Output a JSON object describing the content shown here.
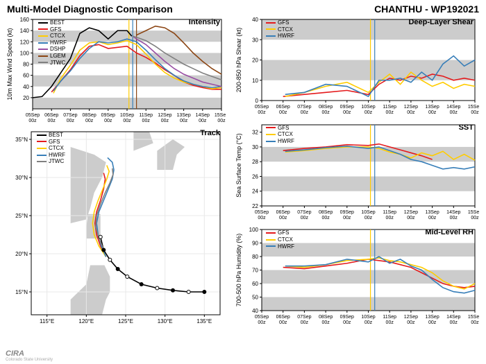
{
  "header": {
    "title": "Multi-Model Diagnostic Comparison",
    "storm": "CHANTHU - WP192021"
  },
  "colors": {
    "BEST": "#000000",
    "GFS": "#e41a1c",
    "CTCX": "#ffcc00",
    "HWRF": "#377eb8",
    "DSHP": "#984ea3",
    "LGEM": "#8b4513",
    "JTWC": "#808080",
    "grid_band": "#cccccc",
    "axis": "#000000",
    "vline1": "#ffcc00",
    "vline2": "#377eb8",
    "vline3": "#8b4513",
    "track_marker_fill": "#ffffff",
    "land": "#cccccc",
    "sea": "#ffffff"
  },
  "common": {
    "xticks": [
      "05Sep 00z",
      "06Sep 00z",
      "07Sep 00z",
      "08Sep 00z",
      "09Sep 00z",
      "10Sep 00z",
      "11Sep 00z",
      "12Sep 00z",
      "13Sep 00z",
      "14Sep 00z",
      "15Sep 00z"
    ],
    "xindex": [
      0,
      1,
      2,
      3,
      4,
      5,
      6,
      7,
      8,
      9,
      10
    ],
    "tick_fontsize": 8,
    "label_fontsize": 9
  },
  "intensity": {
    "title": "Intensity",
    "ylabel": "10m Max Wind Speed (kt)",
    "ylim": [
      0,
      160
    ],
    "yticks": [
      20,
      40,
      60,
      80,
      100,
      120,
      140,
      160
    ],
    "bands": [
      [
        0,
        20
      ],
      [
        40,
        60
      ],
      [
        80,
        100
      ],
      [
        120,
        140
      ]
    ],
    "vlines": [
      5.1,
      5.3,
      5.5
    ],
    "vline_colors": [
      "#ffcc00",
      "#377eb8",
      "#8b4513"
    ],
    "legend": [
      "BEST",
      "GFS",
      "CTCX",
      "HWRF",
      "DSHP",
      "LGEM",
      "JTWC"
    ],
    "series": {
      "BEST": {
        "x": [
          0,
          0.5,
          1,
          1.5,
          2,
          2.5,
          3,
          3.5,
          4,
          4.5,
          5,
          5.25
        ],
        "y": [
          20,
          22,
          40,
          65,
          90,
          135,
          145,
          140,
          125,
          140,
          140,
          130
        ]
      },
      "GFS": {
        "x": [
          1,
          1.5,
          2,
          2.5,
          3,
          3.5,
          4,
          4.5,
          5,
          5.5,
          6,
          6.5,
          7,
          7.5,
          8,
          8.5,
          9,
          9.5,
          10
        ],
        "y": [
          30,
          50,
          70,
          95,
          112,
          115,
          108,
          110,
          112,
          100,
          92,
          82,
          70,
          60,
          48,
          42,
          38,
          35,
          35
        ]
      },
      "CTCX": {
        "x": [
          1.1,
          1.5,
          2,
          2.5,
          3,
          3.5,
          4,
          4.5,
          5,
          5.5,
          6,
          6.5,
          7,
          7.5,
          8,
          8.5,
          9,
          9.5,
          10
        ],
        "y": [
          28,
          55,
          78,
          105,
          118,
          120,
          115,
          118,
          122,
          115,
          98,
          80,
          65,
          55,
          48,
          44,
          40,
          36,
          38
        ]
      },
      "HWRF": {
        "x": [
          1.1,
          1.5,
          2,
          2.5,
          3,
          3.5,
          4,
          4.5,
          5,
          5.5,
          6,
          6.5,
          7,
          7.5,
          8,
          8.5,
          9,
          9.5,
          10
        ],
        "y": [
          32,
          50,
          68,
          90,
          108,
          120,
          118,
          120,
          125,
          120,
          105,
          88,
          72,
          60,
          50,
          44,
          40,
          38,
          40
        ]
      },
      "DSHP": {
        "x": [
          5.3,
          5.5,
          6,
          6.5,
          7,
          7.5,
          8,
          8.5,
          9,
          9.5,
          10
        ],
        "y": [
          130,
          125,
          115,
          100,
          85,
          72,
          62,
          55,
          48,
          44,
          40
        ]
      },
      "LGEM": {
        "x": [
          5.5,
          6,
          6.5,
          7,
          7.5,
          8,
          8.5,
          9,
          9.5,
          10
        ],
        "y": [
          132,
          140,
          148,
          145,
          135,
          118,
          100,
          85,
          72,
          62
        ]
      },
      "JTWC": {
        "x": [
          5.3,
          5.5,
          6,
          6.5,
          7,
          7.5,
          8,
          8.5,
          9,
          9.5,
          10
        ],
        "y": [
          130,
          128,
          122,
          112,
          100,
          90,
          80,
          72,
          64,
          58,
          52
        ]
      }
    }
  },
  "track": {
    "title": "Track",
    "xlabel": "",
    "xlim": [
      113,
      137
    ],
    "ylim": [
      12,
      36
    ],
    "xticks": [
      115,
      120,
      125,
      130,
      135
    ],
    "yticks": [
      15,
      20,
      25,
      30,
      35
    ],
    "xticklabels": [
      "115°E",
      "120°E",
      "125°E",
      "130°E",
      "135°E"
    ],
    "yticklabels": [
      "15°N",
      "20°N",
      "25°N",
      "30°N",
      "35°N"
    ],
    "legend": [
      "BEST",
      "GFS",
      "CTCX",
      "HWRF",
      "JTWC"
    ],
    "land_polys": [
      [
        [
          118,
          12
        ],
        [
          122,
          12
        ],
        [
          122.5,
          14
        ],
        [
          123,
          15
        ],
        [
          123,
          17
        ],
        [
          122.3,
          18.5
        ],
        [
          120.5,
          18.5
        ],
        [
          120,
          16
        ],
        [
          118,
          14
        ]
      ],
      [
        [
          120,
          22
        ],
        [
          121.8,
          22
        ],
        [
          121.8,
          25.2
        ],
        [
          120.2,
          25.2
        ],
        [
          120,
          23.5
        ]
      ],
      [
        [
          118,
          24
        ],
        [
          120,
          24.5
        ],
        [
          120.5,
          26
        ],
        [
          121,
          28
        ],
        [
          122,
          30
        ],
        [
          122.5,
          32
        ],
        [
          121,
          33
        ],
        [
          118,
          34
        ],
        [
          118,
          24
        ]
      ],
      [
        [
          129,
          31
        ],
        [
          131,
          31
        ],
        [
          131.5,
          33
        ],
        [
          132.5,
          34
        ],
        [
          131,
          35
        ],
        [
          129,
          33.5
        ]
      ],
      [
        [
          126,
          33.5
        ],
        [
          128.5,
          34.5
        ],
        [
          128,
          36
        ],
        [
          126,
          36
        ]
      ]
    ],
    "series": {
      "BEST": [
        [
          135,
          15
        ],
        [
          133,
          15
        ],
        [
          131,
          15.2
        ],
        [
          129,
          15.5
        ],
        [
          127,
          16
        ],
        [
          125.2,
          17
        ],
        [
          124,
          18
        ],
        [
          123,
          19.2
        ],
        [
          122.2,
          20.5
        ],
        [
          121.8,
          22.2
        ]
      ],
      "GFS": [
        [
          122.5,
          19.6
        ],
        [
          121.8,
          21
        ],
        [
          121.3,
          22.5
        ],
        [
          121.1,
          24
        ],
        [
          121.3,
          25.5
        ],
        [
          121.8,
          27
        ],
        [
          122.2,
          28.5
        ],
        [
          122.4,
          29.8
        ],
        [
          122.2,
          30.6
        ]
      ],
      "CTCX": [
        [
          122.5,
          19.6
        ],
        [
          121.6,
          21
        ],
        [
          121.0,
          22.5
        ],
        [
          120.8,
          24
        ],
        [
          121.0,
          25.5
        ],
        [
          121.5,
          27
        ],
        [
          122.1,
          28.5
        ],
        [
          122.6,
          29.8
        ],
        [
          122.9,
          30.8
        ],
        [
          122.6,
          31.6
        ]
      ],
      "HWRF": [
        [
          122.5,
          19.6
        ],
        [
          121.9,
          21
        ],
        [
          121.5,
          22.5
        ],
        [
          121.3,
          24
        ],
        [
          121.6,
          25.5
        ],
        [
          122.2,
          27
        ],
        [
          122.8,
          28.5
        ],
        [
          123.3,
          29.8
        ],
        [
          123.5,
          31
        ],
        [
          123.3,
          32
        ],
        [
          122.7,
          32.6
        ]
      ],
      "JTWC": [
        [
          122.2,
          20.6
        ],
        [
          121.6,
          22
        ],
        [
          121.2,
          23.5
        ],
        [
          121.3,
          25
        ],
        [
          121.8,
          26.5
        ],
        [
          122.4,
          28
        ],
        [
          123.0,
          29.3
        ],
        [
          123.4,
          30.4
        ],
        [
          123.3,
          31.2
        ]
      ]
    },
    "best_markers": [
      [
        135,
        15
      ],
      [
        133,
        15
      ],
      [
        131,
        15.2
      ],
      [
        129,
        15.5
      ],
      [
        127,
        16
      ],
      [
        125.2,
        17
      ],
      [
        124,
        18
      ],
      [
        123,
        19.2
      ],
      [
        122.2,
        20.5
      ],
      [
        121.8,
        22.2
      ]
    ]
  },
  "shear": {
    "title": "Deep-Layer Shear",
    "ylabel": "200-850 hPa Shear (kt)",
    "ylim": [
      0,
      40
    ],
    "yticks": [
      0,
      10,
      20,
      30,
      40
    ],
    "bands": [
      [
        10,
        20
      ],
      [
        30,
        40
      ]
    ],
    "vlines": [
      5.1,
      5.3
    ],
    "vline_colors": [
      "#ffcc00",
      "#377eb8"
    ],
    "legend": [
      "GFS",
      "CTCX",
      "HWRF"
    ],
    "series": {
      "GFS": {
        "x": [
          1,
          2,
          3,
          4,
          5,
          5.5,
          6,
          6.5,
          7,
          7.5,
          8,
          8.5,
          9,
          9.5,
          10
        ],
        "y": [
          2,
          3,
          4,
          5,
          3,
          8,
          11,
          10,
          12,
          11,
          13,
          12,
          10,
          11,
          10
        ]
      },
      "CTCX": {
        "x": [
          1.1,
          2,
          3,
          4,
          5,
          5.5,
          6,
          6.5,
          7,
          7.5,
          8,
          8.5,
          9,
          9.5,
          10
        ],
        "y": [
          2,
          4,
          7,
          9,
          4,
          9,
          13,
          8,
          14,
          10,
          7,
          9,
          6,
          8,
          7
        ]
      },
      "HWRF": {
        "x": [
          1.1,
          2,
          3,
          4,
          5,
          5.5,
          6,
          6.5,
          7,
          7.5,
          8,
          8.5,
          9,
          9.5,
          10
        ],
        "y": [
          3,
          4,
          8,
          7,
          2,
          10,
          10,
          11,
          9,
          14,
          10,
          18,
          22,
          17,
          20
        ]
      }
    }
  },
  "sst": {
    "title": "SST",
    "ylabel": "Sea Surface Temp (°C)",
    "ylim": [
      22,
      33
    ],
    "yticks": [
      22,
      24,
      26,
      28,
      30,
      32
    ],
    "bands": [
      [
        24,
        26
      ],
      [
        28,
        30
      ]
    ],
    "vlines": [
      5.1,
      5.3
    ],
    "vline_colors": [
      "#ffcc00",
      "#377eb8"
    ],
    "legend": [
      "GFS",
      "CTCX",
      "HWRF"
    ],
    "series": {
      "GFS": {
        "x": [
          1,
          2,
          3,
          4,
          5,
          5.5,
          6,
          6.5,
          7,
          7.5,
          8
        ],
        "y": [
          29.5,
          29.8,
          30,
          30.3,
          30.2,
          30.4,
          30,
          29.6,
          29.2,
          28.8,
          28.3
        ]
      },
      "CTCX": {
        "x": [
          1.1,
          2,
          3,
          4,
          5,
          5.5,
          6,
          6.5,
          7,
          7.5,
          8,
          8.5,
          9,
          9.5,
          10
        ],
        "y": [
          29.3,
          29.5,
          29.8,
          30,
          30,
          29.8,
          29.3,
          29,
          28.5,
          29.2,
          28.8,
          29.4,
          28.3,
          29,
          28.2
        ]
      },
      "HWRF": {
        "x": [
          1.1,
          2,
          3,
          4,
          5,
          5.5,
          6,
          6.5,
          7,
          7.5,
          8,
          8.5,
          9,
          9.5,
          10
        ],
        "y": [
          29.4,
          29.6,
          29.9,
          30.1,
          29.8,
          30,
          29.5,
          29,
          28.3,
          28,
          27.5,
          27,
          27.2,
          27,
          27.3
        ]
      }
    }
  },
  "rh": {
    "title": "Mid-Level RH",
    "ylabel": "700-500 hPa Humidity (%)",
    "ylim": [
      40,
      100
    ],
    "yticks": [
      40,
      50,
      60,
      70,
      80,
      90,
      100
    ],
    "bands": [
      [
        40,
        50
      ],
      [
        60,
        70
      ],
      [
        80,
        90
      ]
    ],
    "vlines": [
      5.1,
      5.3
    ],
    "vline_colors": [
      "#ffcc00",
      "#377eb8"
    ],
    "legend": [
      "GFS",
      "CTCX",
      "HWRF"
    ],
    "series": {
      "GFS": {
        "x": [
          1,
          2,
          3,
          4,
          5,
          5.5,
          6,
          6.5,
          7,
          7.5,
          8,
          8.5,
          9,
          9.5,
          10
        ],
        "y": [
          72,
          71,
          73,
          75,
          78,
          77,
          76,
          74,
          72,
          68,
          64,
          60,
          58,
          57,
          58
        ]
      },
      "CTCX": {
        "x": [
          1.1,
          2,
          3,
          4,
          5,
          5.5,
          6,
          6.5,
          7,
          7.5,
          8,
          8.5,
          9,
          9.5,
          10
        ],
        "y": [
          73,
          72,
          74,
          77,
          78,
          79,
          77,
          76,
          74,
          72,
          68,
          62,
          58,
          56,
          60
        ]
      },
      "HWRF": {
        "x": [
          1.1,
          2,
          3,
          4,
          5,
          5.5,
          6,
          6.5,
          7,
          7.5,
          8,
          8.5,
          9,
          9.5,
          10
        ],
        "y": [
          73,
          73,
          74,
          78,
          76,
          80,
          75,
          78,
          73,
          70,
          63,
          57,
          54,
          53,
          55
        ]
      }
    }
  },
  "logo": {
    "text": "CIRA",
    "sub": "Colorado State University"
  }
}
